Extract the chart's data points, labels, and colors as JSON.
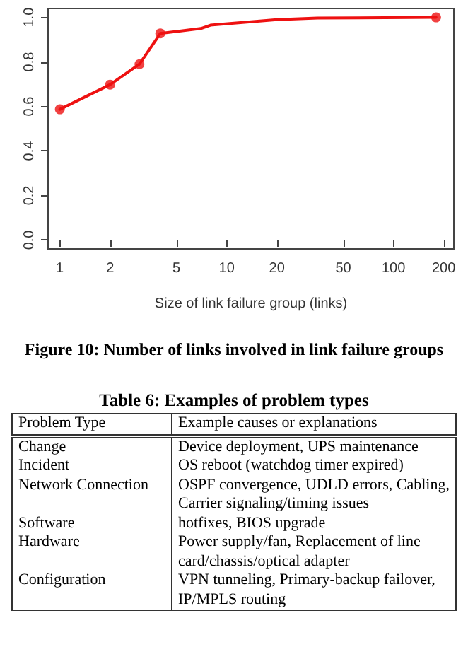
{
  "chart_data": [
    {
      "type": "line",
      "title": "Figure 10: Number of links involved in link failure groups",
      "xlabel": "Size of link failure group (links)",
      "log": "x",
      "xlim": [
        0.85,
        230
      ],
      "xticks": [
        1,
        2,
        5,
        10,
        20,
        50,
        100,
        200
      ],
      "ylim": [
        -0.04,
        1.04
      ],
      "yticks": [
        {
          "value": 0,
          "label": "0.0"
        },
        {
          "value": 0.2,
          "label": "0.2"
        },
        {
          "value": 0.4,
          "label": "0.4"
        },
        {
          "value": 0.6,
          "label": "0.6"
        },
        {
          "value": 0.8,
          "label": "0.8"
        },
        {
          "value": 1,
          "label": "1.0"
        }
      ],
      "series": [
        {
          "type": "line",
          "color": "#ee1111",
          "marker": "none",
          "x": [
            1,
            2,
            3,
            4,
            7,
            8,
            20,
            35,
            180
          ],
          "values": [
            0.587,
            0.698,
            0.79,
            0.928,
            0.95,
            0.965,
            0.99,
            0.997,
            1.0
          ]
        },
        {
          "type": "scatter",
          "color": "#ee1111",
          "marker": "circle",
          "x": [
            1,
            2,
            3,
            4,
            180
          ],
          "values": [
            0.587,
            0.698,
            0.79,
            0.928,
            1.0
          ]
        }
      ]
    },
    {
      "type": "other",
      "title": "Table 6: Examples of problem types",
      "categories": [
        "Problem Type",
        "Example causes or explanations"
      ],
      "annotations": [
        "Change",
        "Device deployment, UPS maintenance",
        "Incident",
        "OS reboot (watchdog timer expired)",
        "Network Connection",
        "OSPF convergence, UDLD errors, Cabling, Carrier signaling/timing issues",
        "Software",
        "hotfixes, BIOS upgrade",
        "Hardware",
        "Power supply/fan, Replacement of line card/chassis/optical adapter",
        "Configuration",
        "VPN tunneling, Primary-backup failover, IP/MPLS routing"
      ]
    }
  ]
}
